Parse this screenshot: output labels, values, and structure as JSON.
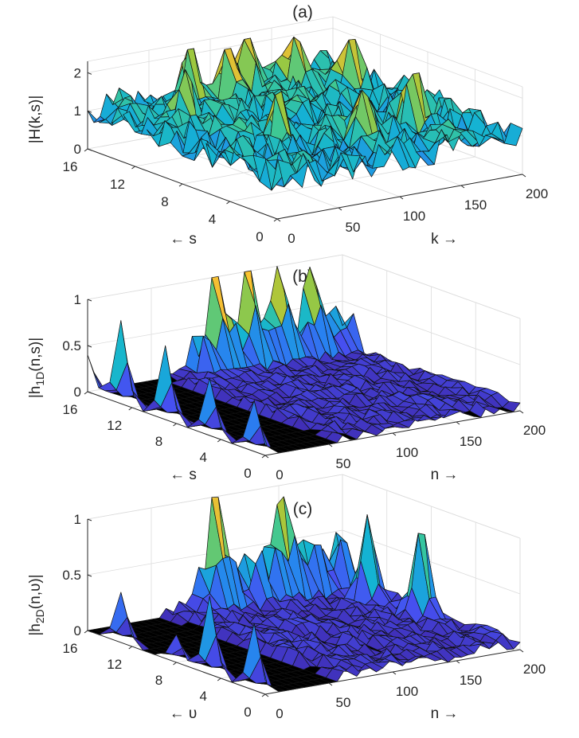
{
  "chart_data": [
    {
      "id": "a",
      "type": "surface",
      "title": "(a)",
      "zlabel": "|H(k,s)|",
      "xlabel": "k →",
      "ylabel": "← s",
      "xlim": [
        0,
        200
      ],
      "ylim": [
        0,
        16
      ],
      "zlim": [
        0,
        2.3
      ],
      "xticks": [
        0,
        50,
        100,
        150,
        200
      ],
      "yticks": [
        0,
        4,
        8,
        12,
        16
      ],
      "zticks": [
        0,
        1,
        2
      ],
      "peaks": [
        {
          "k": 95,
          "s": 14,
          "z": 2.3
        },
        {
          "k": 75,
          "s": 15,
          "z": 2.1
        },
        {
          "k": 120,
          "s": 15,
          "z": 2.0
        },
        {
          "k": 150,
          "s": 14,
          "z": 1.9
        },
        {
          "k": 40,
          "s": 12,
          "z": 1.8
        },
        {
          "k": 175,
          "s": 12,
          "z": 1.7
        },
        {
          "k": 60,
          "s": 6,
          "z": 1.6
        },
        {
          "k": 110,
          "s": 4,
          "z": 1.7
        },
        {
          "k": 160,
          "s": 5,
          "z": 1.8
        }
      ]
    },
    {
      "id": "b",
      "type": "surface",
      "title": "(b)",
      "zlabel": "|h1D(n,s)|",
      "zlabel_main": "|h",
      "zlabel_sub": "1D",
      "zlabel_tail": "(n,s)|",
      "xlabel": "n →",
      "ylabel": "← s",
      "xlim": [
        0,
        200
      ],
      "ylim": [
        0,
        16
      ],
      "zlim": [
        0,
        1
      ],
      "xticks": [
        0,
        50,
        100,
        150,
        200
      ],
      "yticks": [
        0,
        4,
        8,
        12,
        16
      ],
      "zticks": [
        0,
        0.5,
        1
      ],
      "peaks": [
        {
          "n": 0,
          "s": 1,
          "z": 0.55
        },
        {
          "n": 0,
          "s": 5,
          "z": 0.62
        },
        {
          "n": 0,
          "s": 9,
          "z": 0.8
        },
        {
          "n": 0,
          "s": 13,
          "z": 0.9
        },
        {
          "n": 0,
          "s": 16,
          "z": 0.4
        },
        {
          "n": 100,
          "s": 16,
          "z": 1.0
        },
        {
          "n": 125,
          "s": 16,
          "z": 0.95
        },
        {
          "n": 150,
          "s": 16,
          "z": 0.9
        },
        {
          "n": 175,
          "s": 16,
          "z": 0.75
        }
      ]
    },
    {
      "id": "c",
      "type": "surface",
      "title": "(c)",
      "zlabel": "|h2D(n,v)|",
      "zlabel_main": "|h",
      "zlabel_sub": "2D",
      "zlabel_tail": "(n,υ)|",
      "xlabel": "n →",
      "ylabel": "← υ",
      "xlim": [
        0,
        200
      ],
      "ylim": [
        0,
        16
      ],
      "zlim": [
        0,
        1
      ],
      "xticks": [
        0,
        50,
        100,
        150,
        200
      ],
      "yticks": [
        0,
        4,
        8,
        12,
        16
      ],
      "zticks": [
        0,
        0.5,
        1
      ],
      "peaks": [
        {
          "n": 0,
          "s": 1,
          "z": 0.6
        },
        {
          "n": 0,
          "s": 5,
          "z": 0.7
        },
        {
          "n": 0,
          "s": 8,
          "z": 0.25
        },
        {
          "n": 0,
          "s": 13,
          "z": 0.45
        },
        {
          "n": 100,
          "s": 16,
          "z": 1.0
        },
        {
          "n": 150,
          "s": 16,
          "z": 0.7
        },
        {
          "n": 185,
          "s": 12,
          "z": 0.8
        },
        {
          "n": 192,
          "s": 8,
          "z": 0.85
        }
      ]
    }
  ]
}
